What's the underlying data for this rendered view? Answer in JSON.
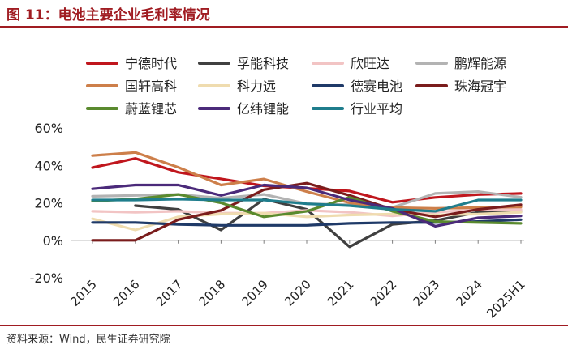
{
  "figure": {
    "title": "图 11：电池主要企业毛利率情况",
    "source": "资料来源：Wind，民生证券研究院"
  },
  "chart_data": {
    "type": "line",
    "categories": [
      "2015",
      "2016",
      "2017",
      "2018",
      "2019",
      "2020",
      "2021",
      "2022",
      "2023",
      "2024",
      "2025H1"
    ],
    "yticks": [
      "-20%",
      "0%",
      "20%",
      "40%",
      "60%"
    ],
    "ylim": [
      -20,
      60
    ],
    "ytick_values": [
      -20,
      0,
      20,
      40,
      60
    ],
    "legend_position": "top",
    "grid": false,
    "series": [
      {
        "name": "宁德时代",
        "color": "#c0161d",
        "values": [
          38.8,
          43.7,
          36.3,
          32.8,
          29.1,
          27.8,
          26.3,
          20.3,
          22.9,
          24.4,
          25.0
        ]
      },
      {
        "name": "孚能科技",
        "color": "#404040",
        "values": [
          null,
          18.5,
          16.5,
          5.5,
          22.0,
          16.5,
          -3.5,
          8.5,
          10.5,
          15.0,
          15.5
        ]
      },
      {
        "name": "欣旺达",
        "color": "#f2c4c4",
        "values": [
          15.5,
          15.0,
          15.5,
          14.5,
          14.5,
          16.0,
          15.0,
          13.0,
          15.0,
          16.5,
          16.5
        ]
      },
      {
        "name": "鹏辉能源",
        "color": "#b3b3b3",
        "values": [
          23.5,
          24.0,
          24.5,
          22.5,
          24.5,
          19.5,
          19.0,
          17.5,
          25.0,
          26.0,
          23.0
        ]
      },
      {
        "name": "国轩高科",
        "color": "#cd7f4a",
        "values": [
          45.2,
          46.9,
          39.0,
          29.5,
          32.7,
          26.0,
          20.0,
          17.5,
          17.0,
          17.5,
          17.8
        ]
      },
      {
        "name": "科力远",
        "color": "#efdcaf",
        "values": [
          11.5,
          5.5,
          12.5,
          14.0,
          14.5,
          12.5,
          13.5,
          14.0,
          13.5,
          14.0,
          15.0
        ]
      },
      {
        "name": "德赛电池",
        "color": "#1f3a68",
        "values": [
          9.5,
          9.5,
          8.5,
          8.0,
          8.0,
          8.0,
          9.0,
          9.5,
          9.5,
          10.0,
          11.0
        ]
      },
      {
        "name": "珠海冠宇",
        "color": "#7a1c1c",
        "values": [
          0,
          0,
          11.0,
          16.0,
          27.0,
          30.5,
          24.0,
          16.5,
          12.5,
          16.5,
          19.0
        ]
      },
      {
        "name": "蔚蓝锂芯",
        "color": "#5a8a2e",
        "values": [
          21.0,
          22.0,
          24.5,
          20.0,
          12.5,
          15.5,
          23.0,
          15.5,
          10.0,
          9.5,
          9.0
        ]
      },
      {
        "name": "亿纬锂能",
        "color": "#4b2a7a",
        "values": [
          27.5,
          29.5,
          29.5,
          24.0,
          29.5,
          28.0,
          21.5,
          17.0,
          7.5,
          12.0,
          13.0
        ]
      },
      {
        "name": "行业平均",
        "color": "#1f7d8c",
        "values": [
          21.5,
          21.5,
          22.0,
          21.5,
          21.5,
          19.5,
          18.5,
          16.5,
          15.5,
          21.5,
          21.5
        ]
      }
    ]
  }
}
